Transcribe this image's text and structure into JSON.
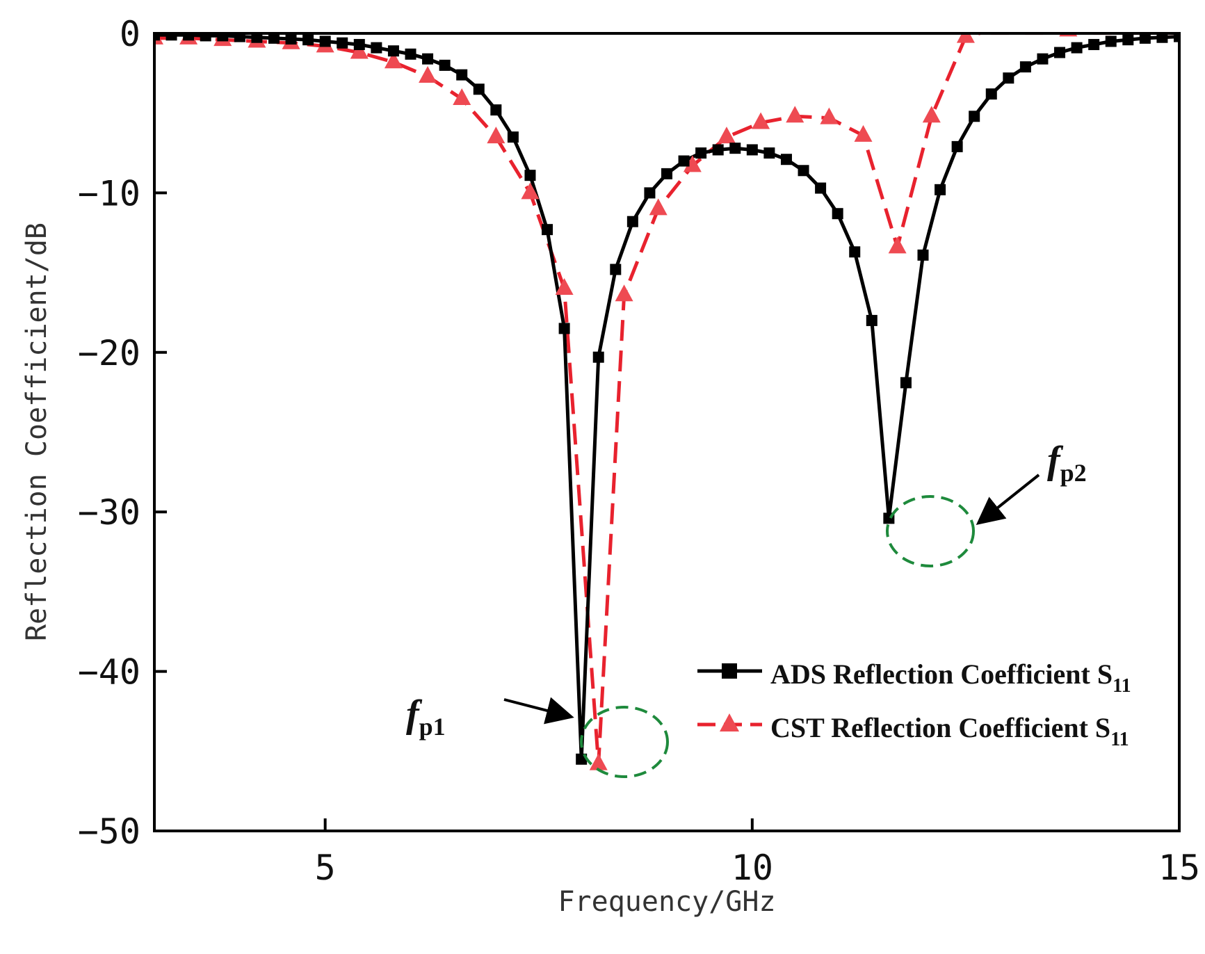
{
  "chart_data": {
    "type": "line",
    "title": "",
    "xlabel": "Frequency/GHz",
    "ylabel": "Reflection Coefficient/dB",
    "xlim": [
      3,
      15
    ],
    "ylim": [
      -50,
      0
    ],
    "xticks": [
      {
        "value": 5,
        "label": "5"
      },
      {
        "value": 10,
        "label": "10"
      },
      {
        "value": 15,
        "label": "15"
      }
    ],
    "yticks": [
      {
        "value": 0,
        "label": "0"
      },
      {
        "value": -10,
        "label": "−10"
      },
      {
        "value": -20,
        "label": "−20"
      },
      {
        "value": -30,
        "label": "−30"
      },
      {
        "value": -40,
        "label": "−40"
      },
      {
        "value": -50,
        "label": "−50"
      }
    ],
    "grid": false,
    "legend_position": "bottom-right",
    "series": [
      {
        "name": "ADS Reflection Coefficient S11",
        "legend_main": "ADS Reflection Coefficient S",
        "legend_sub": "11",
        "color": "#000000",
        "line_style": "solid",
        "marker": "square",
        "x": [
          3.0,
          3.2,
          3.4,
          3.6,
          3.8,
          4.0,
          4.2,
          4.4,
          4.6,
          4.8,
          5.0,
          5.2,
          5.4,
          5.6,
          5.8,
          6.0,
          6.2,
          6.4,
          6.6,
          6.8,
          7.0,
          7.2,
          7.4,
          7.6,
          7.8,
          8.0,
          8.2,
          8.4,
          8.6,
          8.8,
          9.0,
          9.2,
          9.4,
          9.6,
          9.8,
          10.0,
          10.2,
          10.4,
          10.6,
          10.8,
          11.0,
          11.2,
          11.4,
          11.6,
          11.8,
          12.0,
          12.2,
          12.4,
          12.6,
          12.8,
          13.0,
          13.2,
          13.4,
          13.6,
          13.8,
          14.0,
          14.2,
          14.4,
          14.6,
          14.8,
          15.0
        ],
        "y": [
          -0.1,
          -0.1,
          -0.1,
          -0.15,
          -0.15,
          -0.2,
          -0.25,
          -0.3,
          -0.35,
          -0.4,
          -0.5,
          -0.6,
          -0.7,
          -0.9,
          -1.1,
          -1.3,
          -1.6,
          -2.0,
          -2.6,
          -3.5,
          -4.8,
          -6.5,
          -8.9,
          -12.3,
          -18.5,
          -45.5,
          -20.3,
          -14.8,
          -11.8,
          -10.0,
          -8.8,
          -8.0,
          -7.5,
          -7.3,
          -7.2,
          -7.3,
          -7.5,
          -7.9,
          -8.6,
          -9.7,
          -11.3,
          -13.7,
          -18.0,
          -30.4,
          -21.9,
          -13.9,
          -9.8,
          -7.1,
          -5.2,
          -3.8,
          -2.8,
          -2.1,
          -1.6,
          -1.2,
          -0.9,
          -0.7,
          -0.5,
          -0.4,
          -0.3,
          -0.25,
          -0.2
        ]
      },
      {
        "name": "CST Reflection Coefficient S11",
        "legend_main": "CST Reflection Coefficient S",
        "legend_sub": "11",
        "color": "#e8222e",
        "line_style": "dashed",
        "marker": "triangle",
        "x": [
          3.0,
          3.4,
          3.8,
          4.2,
          4.6,
          5.0,
          5.4,
          5.8,
          6.2,
          6.6,
          7.0,
          7.4,
          7.8,
          8.2,
          8.5,
          8.9,
          9.3,
          9.7,
          10.1,
          10.5,
          10.9,
          11.3,
          11.7,
          12.1,
          12.5,
          12.9,
          13.3,
          13.7,
          14.1,
          14.5,
          14.9
        ],
        "y": [
          -0.3,
          -0.3,
          -0.4,
          -0.5,
          -0.6,
          -0.8,
          -1.2,
          -1.8,
          -2.7,
          -4.1,
          -6.5,
          -10.0,
          -16.0,
          -45.8,
          -16.4,
          -11.0,
          -8.3,
          -6.5,
          -5.6,
          -5.2,
          -5.3,
          -6.4,
          -13.4,
          -5.2,
          -0.2,
          0.3,
          0.3,
          0.2,
          0.3,
          0.3,
          0.3
        ]
      }
    ],
    "annotations": [
      {
        "main": "f",
        "sub": "p1"
      },
      {
        "main": "f",
        "sub": "p2"
      }
    ]
  }
}
